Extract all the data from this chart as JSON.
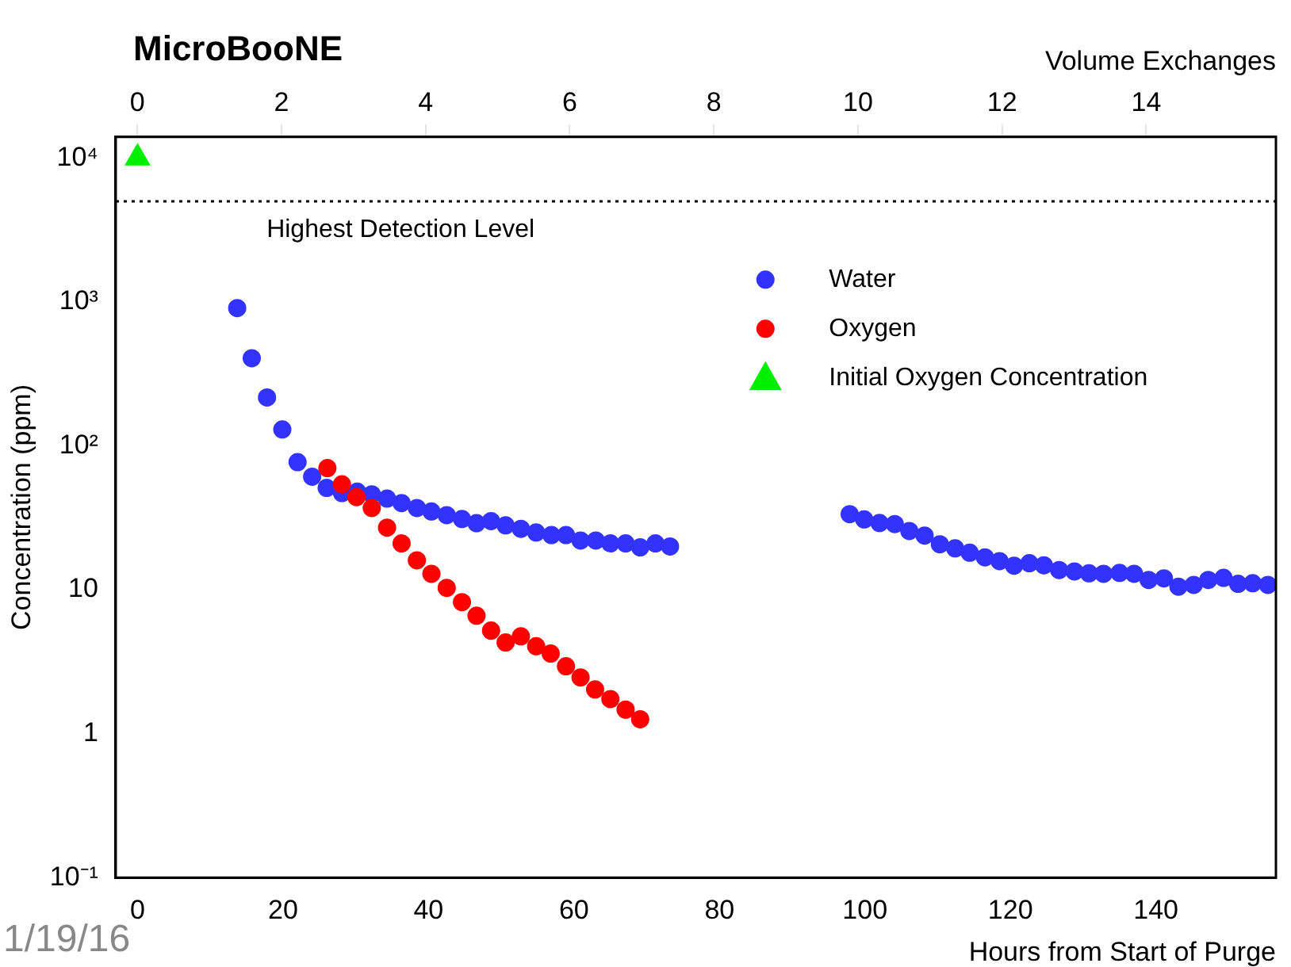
{
  "chart_data": {
    "type": "scatter",
    "title": "MicroBooNE",
    "xlabel": "Hours from Start of Purge",
    "ylabel": "Concentration (ppm)",
    "x2label": "Volume Exchanges",
    "annotations": [
      "1/19/16"
    ],
    "xlim": [
      -3,
      156.5
    ],
    "xticks": [
      0,
      20,
      40,
      60,
      80,
      100,
      120,
      140
    ],
    "x2lim": [
      -0.3,
      15.8
    ],
    "x2ticks": [
      0,
      2,
      4,
      6,
      8,
      10,
      12,
      14
    ],
    "ylim": [
      0.1,
      14000
    ],
    "yticks": [
      {
        "value": 0.1,
        "label": "10⁻¹"
      },
      1,
      10,
      {
        "value": 100,
        "label": "10²"
      },
      {
        "value": 1000,
        "label": "10³"
      },
      {
        "value": 10000,
        "label": "10⁴"
      }
    ],
    "log": "y",
    "grid": false,
    "legend": "top right",
    "ref_lines": [
      {
        "axis": "y",
        "value": 5000,
        "label": "Highest Detection Level",
        "color": "#000000",
        "line_style": "dotted"
      }
    ],
    "series": [
      {
        "name": "Water",
        "color": "#3333ff",
        "marker": "circle",
        "x": [
          13.7,
          15.7,
          17.8,
          19.9,
          22.0,
          24.0,
          26.0,
          28.1,
          30.2,
          32.2,
          34.3,
          36.3,
          38.4,
          40.4,
          42.5,
          44.6,
          46.6,
          48.6,
          50.6,
          52.7,
          54.8,
          56.9,
          58.9,
          60.9,
          63.0,
          65.0,
          67.1,
          69.1,
          71.2,
          73.2,
          97.9,
          99.9,
          102.0,
          104.1,
          106.1,
          108.2,
          110.3,
          112.4,
          114.4,
          116.5,
          118.5,
          120.5,
          122.6,
          124.6,
          126.7,
          128.8,
          130.8,
          132.8,
          135.0,
          137.0,
          139.0,
          141.1,
          143.1,
          145.2,
          147.2,
          149.3,
          151.3,
          153.3,
          155.4
        ],
        "values": [
          906,
          406,
          217,
          130,
          77,
          61,
          51,
          47,
          48,
          46,
          43,
          40,
          37,
          35,
          33,
          31,
          29,
          30,
          28,
          26.5,
          25,
          24,
          24,
          22,
          22,
          21,
          21,
          19.7,
          21,
          20,
          33.5,
          30.8,
          29.1,
          28.6,
          25.6,
          23.8,
          20.7,
          19.4,
          18.1,
          16.8,
          15.8,
          14.7,
          15.3,
          14.8,
          13.7,
          13.4,
          13.0,
          12.9,
          13.1,
          12.9,
          11.7,
          12.0,
          10.5,
          10.8,
          11.7,
          12.1,
          11.0,
          11.1,
          10.8
        ]
      },
      {
        "name": "Oxygen",
        "color": "#ff0000",
        "marker": "circle",
        "x": [
          26.1,
          28.1,
          30.1,
          32.2,
          34.3,
          36.3,
          38.4,
          40.4,
          42.5,
          44.6,
          46.6,
          48.6,
          50.6,
          52.7,
          54.8,
          56.8,
          58.9,
          60.9,
          62.9,
          65.0,
          67.1,
          69.1
        ],
        "values": [
          70,
          54,
          44,
          37,
          27,
          21,
          16,
          12.9,
          10.3,
          8.2,
          6.6,
          5.2,
          4.3,
          4.75,
          4.05,
          3.6,
          2.94,
          2.46,
          2.03,
          1.74,
          1.47,
          1.26
        ]
      },
      {
        "name": "Initial Oxygen Concentration",
        "color": "#00ee00",
        "marker": "triangle",
        "x": [
          0
        ],
        "values": [
          10000
        ]
      }
    ]
  }
}
